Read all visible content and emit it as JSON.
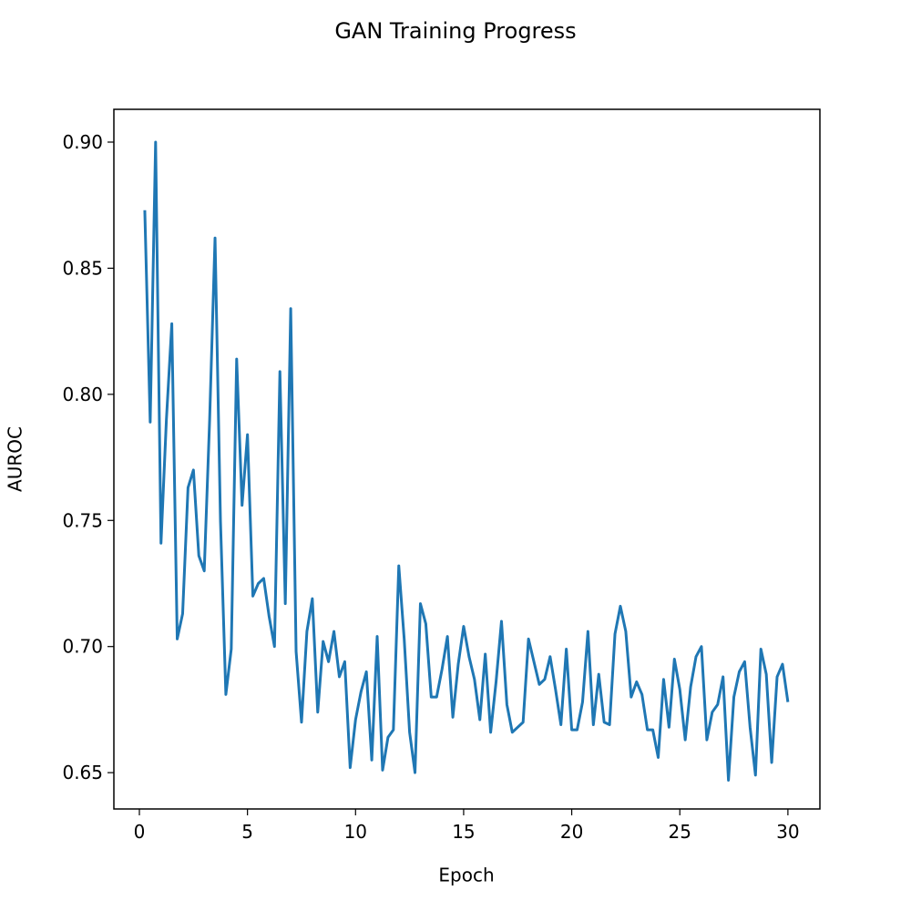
{
  "chart_data": {
    "type": "line",
    "title": "GAN Training Progress",
    "x_label": "Epoch",
    "y_label": "AUROC",
    "color": "#1f77b4",
    "x": [
      0.25,
      0.5,
      0.75,
      1.0,
      1.25,
      1.5,
      1.75,
      2.0,
      2.25,
      2.5,
      2.75,
      3.0,
      3.25,
      3.5,
      3.75,
      4.0,
      4.25,
      4.5,
      4.75,
      5.0,
      5.25,
      5.5,
      5.75,
      6.0,
      6.25,
      6.5,
      6.75,
      7.0,
      7.25,
      7.5,
      7.75,
      8.0,
      8.25,
      8.5,
      8.75,
      9.0,
      9.25,
      9.5,
      9.75,
      10.0,
      10.25,
      10.5,
      10.75,
      11.0,
      11.25,
      11.5,
      11.75,
      12.0,
      12.25,
      12.5,
      12.75,
      13.0,
      13.25,
      13.5,
      13.75,
      14.0,
      14.25,
      14.5,
      14.75,
      15.0,
      15.25,
      15.5,
      15.75,
      16.0,
      16.25,
      16.5,
      16.75,
      17.0,
      17.25,
      17.5,
      17.75,
      18.0,
      18.25,
      18.5,
      18.75,
      19.0,
      19.25,
      19.5,
      19.75,
      20.0,
      20.25,
      20.5,
      20.75,
      21.0,
      21.25,
      21.5,
      21.75,
      22.0,
      22.25,
      22.5,
      22.75,
      23.0,
      23.25,
      23.5,
      23.75,
      24.0,
      24.25,
      24.5,
      24.75,
      25.0,
      25.25,
      25.5,
      25.75,
      26.0,
      26.25,
      26.5,
      26.75,
      27.0,
      27.25,
      27.5,
      27.75,
      28.0,
      28.25,
      28.5,
      28.75,
      29.0,
      29.25,
      29.5,
      29.75,
      30.0
    ],
    "values": [
      0.873,
      0.789,
      0.9,
      0.741,
      0.79,
      0.828,
      0.703,
      0.713,
      0.763,
      0.77,
      0.736,
      0.73,
      0.79,
      0.862,
      0.75,
      0.681,
      0.699,
      0.814,
      0.756,
      0.784,
      0.72,
      0.725,
      0.727,
      0.712,
      0.7,
      0.809,
      0.717,
      0.834,
      0.698,
      0.67,
      0.706,
      0.719,
      0.674,
      0.702,
      0.694,
      0.706,
      0.688,
      0.694,
      0.652,
      0.671,
      0.682,
      0.69,
      0.655,
      0.704,
      0.651,
      0.664,
      0.667,
      0.732,
      0.703,
      0.666,
      0.65,
      0.717,
      0.709,
      0.68,
      0.68,
      0.691,
      0.704,
      0.672,
      0.693,
      0.708,
      0.696,
      0.687,
      0.671,
      0.697,
      0.666,
      0.686,
      0.71,
      0.677,
      0.666,
      0.668,
      0.67,
      0.703,
      0.694,
      0.685,
      0.687,
      0.696,
      0.683,
      0.669,
      0.699,
      0.667,
      0.667,
      0.678,
      0.706,
      0.669,
      0.689,
      0.67,
      0.669,
      0.705,
      0.716,
      0.706,
      0.68,
      0.686,
      0.681,
      0.667,
      0.667,
      0.656,
      0.687,
      0.668,
      0.695,
      0.683,
      0.663,
      0.684,
      0.696,
      0.7,
      0.663,
      0.674,
      0.677,
      0.688,
      0.647,
      0.68,
      0.69,
      0.694,
      0.668,
      0.649,
      0.699,
      0.689,
      0.654,
      0.688,
      0.693,
      0.678
    ],
    "xlim": [
      -1.18,
      31.48
    ],
    "ylim": [
      0.6356,
      0.913
    ],
    "xticks": [
      0,
      5,
      10,
      15,
      20,
      25,
      30
    ],
    "yticks": [
      {
        "value": 0.65,
        "label": "0.65"
      },
      {
        "value": 0.7,
        "label": "0.70"
      },
      {
        "value": 0.75,
        "label": "0.75"
      },
      {
        "value": 0.8,
        "label": "0.80"
      },
      {
        "value": 0.85,
        "label": "0.85"
      },
      {
        "value": 0.9,
        "label": "0.90"
      }
    ]
  }
}
